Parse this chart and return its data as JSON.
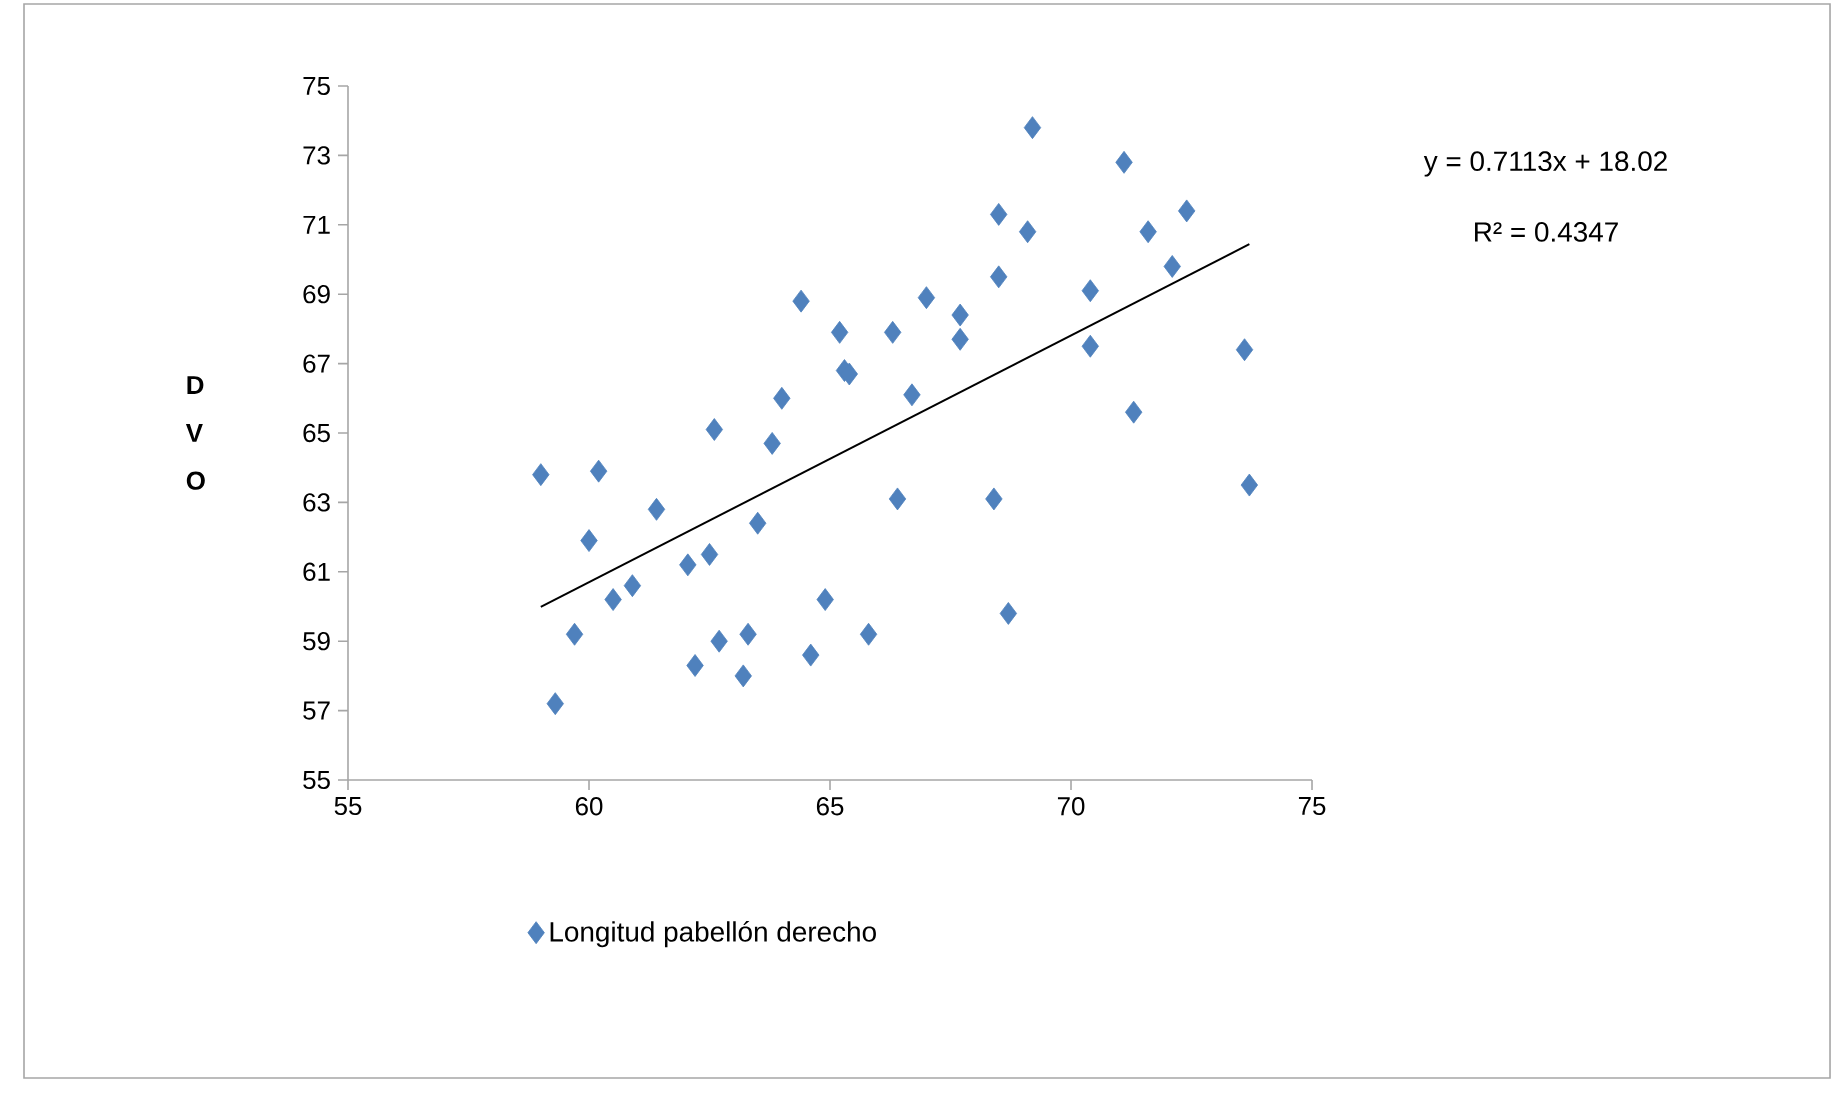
{
  "chart_data": {
    "type": "scatter",
    "ylabel": "D V O",
    "series": [
      {
        "name": "Longitud pabellón derecho",
        "color": "#4f81bd",
        "marker": "diamond",
        "x": [
          59.0,
          59.3,
          59.7,
          60.0,
          60.2,
          60.5,
          60.9,
          61.4,
          62.05,
          62.2,
          62.5,
          62.6,
          62.7,
          63.2,
          63.3,
          63.5,
          63.8,
          64.0,
          64.4,
          64.6,
          64.9,
          65.2,
          65.3,
          65.4,
          65.8,
          66.3,
          66.4,
          66.7,
          67.0,
          67.7,
          67.7,
          68.4,
          68.5,
          68.5,
          68.7,
          69.1,
          69.2,
          70.4,
          70.4,
          71.1,
          71.3,
          71.6,
          72.1,
          72.4,
          73.6,
          73.7
        ],
        "values": [
          63.8,
          57.2,
          59.2,
          61.9,
          63.9,
          60.2,
          60.6,
          62.8,
          61.2,
          58.3,
          61.5,
          65.1,
          59.0,
          58.0,
          59.2,
          62.4,
          64.7,
          66.0,
          68.8,
          58.6,
          60.2,
          67.9,
          66.8,
          66.7,
          59.2,
          67.9,
          63.1,
          66.1,
          68.9,
          68.4,
          67.7,
          63.1,
          71.3,
          69.5,
          59.8,
          70.8,
          73.8,
          67.5,
          69.1,
          72.8,
          65.6,
          70.8,
          69.8,
          71.4,
          67.4,
          63.5
        ]
      },
      {
        "type": "line",
        "color": "#000000",
        "marker": "none",
        "line_style": "solid",
        "x": [
          59.0,
          73.7
        ],
        "values": [
          59.99,
          70.44
        ]
      }
    ],
    "xlim": [
      55,
      75
    ],
    "ylim": [
      55,
      75
    ],
    "xticks": [
      55,
      60,
      65,
      70,
      75
    ],
    "yticks": [
      55,
      57,
      59,
      61,
      63,
      65,
      67,
      69,
      71,
      73,
      75
    ],
    "legend": "bottom",
    "annotations": [
      "y = 0.7113x + 18.02",
      "R² = 0.4347"
    ]
  }
}
